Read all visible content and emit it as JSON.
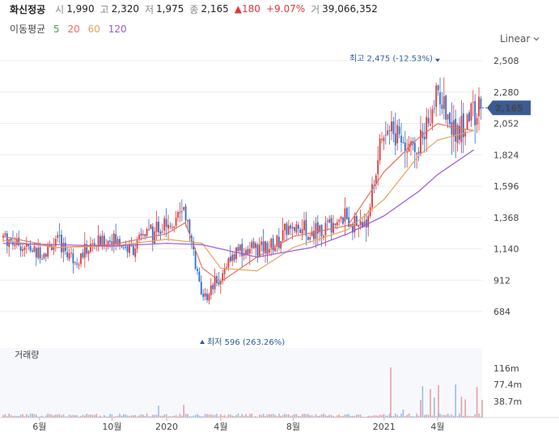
{
  "header": {
    "name": "화신정공",
    "open_label": "시",
    "open": "1,990",
    "high_label": "고",
    "high": "2,320",
    "low_label": "저",
    "low": "1,975",
    "close_label": "종",
    "close": "2,165",
    "change": "▲180",
    "change_pct": "+9.07%",
    "volume_label": "거",
    "volume": "39,066,352"
  },
  "moving_average": {
    "title": "이동평균",
    "periods": [
      {
        "label": "5",
        "color": "#3aa757"
      },
      {
        "label": "20",
        "color": "#e8715a"
      },
      {
        "label": "60",
        "color": "#e8a25a"
      },
      {
        "label": "120",
        "color": "#9b59d6"
      }
    ]
  },
  "scale_select": "Linear",
  "colors": {
    "up": "#e0373b",
    "down": "#2a6fc9",
    "price_badge": "#3b5b93",
    "grid": "#eeeeee"
  },
  "chart_data": {
    "type": "candlestick",
    "price_axis": {
      "ticks": [
        "2,508",
        "2,280",
        "2,052",
        "1,824",
        "1,596",
        "1,368",
        "1,140",
        "912",
        "684"
      ],
      "range": [
        480,
        2620
      ]
    },
    "current_price_label": "2,165",
    "current_price": 2165,
    "max_annotation": {
      "label": "최고 2,475 (-12.53%)",
      "value": 2475,
      "date": "2021-04"
    },
    "min_annotation": {
      "label": "최저 596 (263.26%)",
      "value": 596,
      "date": "2020-03"
    },
    "volume_panel": {
      "title": "거래량",
      "ticks": [
        "116m",
        "77.4m",
        "38.7m"
      ]
    },
    "x_ticks": [
      "6월",
      "10월",
      "2020",
      "4월",
      "8월",
      "2021",
      "4월"
    ],
    "x_tick_dates": [
      "2019-06",
      "2019-10",
      "2020-01",
      "2020-04",
      "2020-08",
      "2021-01",
      "2021-04"
    ],
    "price_path": [
      [
        "2019-04",
        1230
      ],
      [
        "2019-05",
        1170
      ],
      [
        "2019-06",
        1100
      ],
      [
        "2019-07",
        1190
      ],
      [
        "2019-08",
        1060
      ],
      [
        "2019-09",
        1170
      ],
      [
        "2019-10",
        1210
      ],
      [
        "2019-11",
        1130
      ],
      [
        "2019-12",
        1260
      ],
      [
        "2020-01",
        1290
      ],
      [
        "2020-02",
        1420
      ],
      [
        "2020-03",
        760
      ],
      [
        "2020-04",
        960
      ],
      [
        "2020-05",
        1130
      ],
      [
        "2020-06",
        1150
      ],
      [
        "2020-07",
        1160
      ],
      [
        "2020-08",
        1320
      ],
      [
        "2020-09",
        1240
      ],
      [
        "2020-10",
        1310
      ],
      [
        "2020-11",
        1360
      ],
      [
        "2020-12",
        1300
      ],
      [
        "2021-01",
        2050
      ],
      [
        "2021-02",
        1950
      ],
      [
        "2021-03",
        1880
      ],
      [
        "2021-04",
        2300
      ],
      [
        "2021-05",
        1950
      ],
      [
        "2021-06",
        2165
      ]
    ],
    "ma_lines": [
      {
        "name": "20",
        "color": "#e8715a",
        "points": [
          [
            "2019-04",
            1230
          ],
          [
            "2019-07",
            1150
          ],
          [
            "2019-10",
            1170
          ],
          [
            "2020-01",
            1250
          ],
          [
            "2020-02",
            1330
          ],
          [
            "2020-03",
            1000
          ],
          [
            "2020-04",
            900
          ],
          [
            "2020-06",
            1080
          ],
          [
            "2020-08",
            1230
          ],
          [
            "2020-11",
            1310
          ],
          [
            "2021-01",
            1700
          ],
          [
            "2021-03",
            1950
          ],
          [
            "2021-04",
            2050
          ],
          [
            "2021-05",
            2020
          ],
          [
            "2021-06",
            2000
          ]
        ]
      },
      {
        "name": "60",
        "color": "#e8a25a",
        "points": [
          [
            "2019-04",
            1200
          ],
          [
            "2019-07",
            1150
          ],
          [
            "2019-10",
            1160
          ],
          [
            "2020-01",
            1210
          ],
          [
            "2020-03",
            1180
          ],
          [
            "2020-04",
            1000
          ],
          [
            "2020-06",
            980
          ],
          [
            "2020-08",
            1150
          ],
          [
            "2020-11",
            1280
          ],
          [
            "2021-01",
            1500
          ],
          [
            "2021-03",
            1820
          ],
          [
            "2021-04",
            1930
          ],
          [
            "2021-06",
            2000
          ]
        ]
      },
      {
        "name": "120",
        "color": "#9b59d6",
        "points": [
          [
            "2019-04",
            1180
          ],
          [
            "2019-10",
            1160
          ],
          [
            "2020-01",
            1180
          ],
          [
            "2020-03",
            1170
          ],
          [
            "2020-06",
            1080
          ],
          [
            "2020-09",
            1150
          ],
          [
            "2020-11",
            1250
          ],
          [
            "2021-01",
            1380
          ],
          [
            "2021-03",
            1560
          ],
          [
            "2021-04",
            1680
          ],
          [
            "2021-06",
            1860
          ]
        ]
      }
    ]
  }
}
